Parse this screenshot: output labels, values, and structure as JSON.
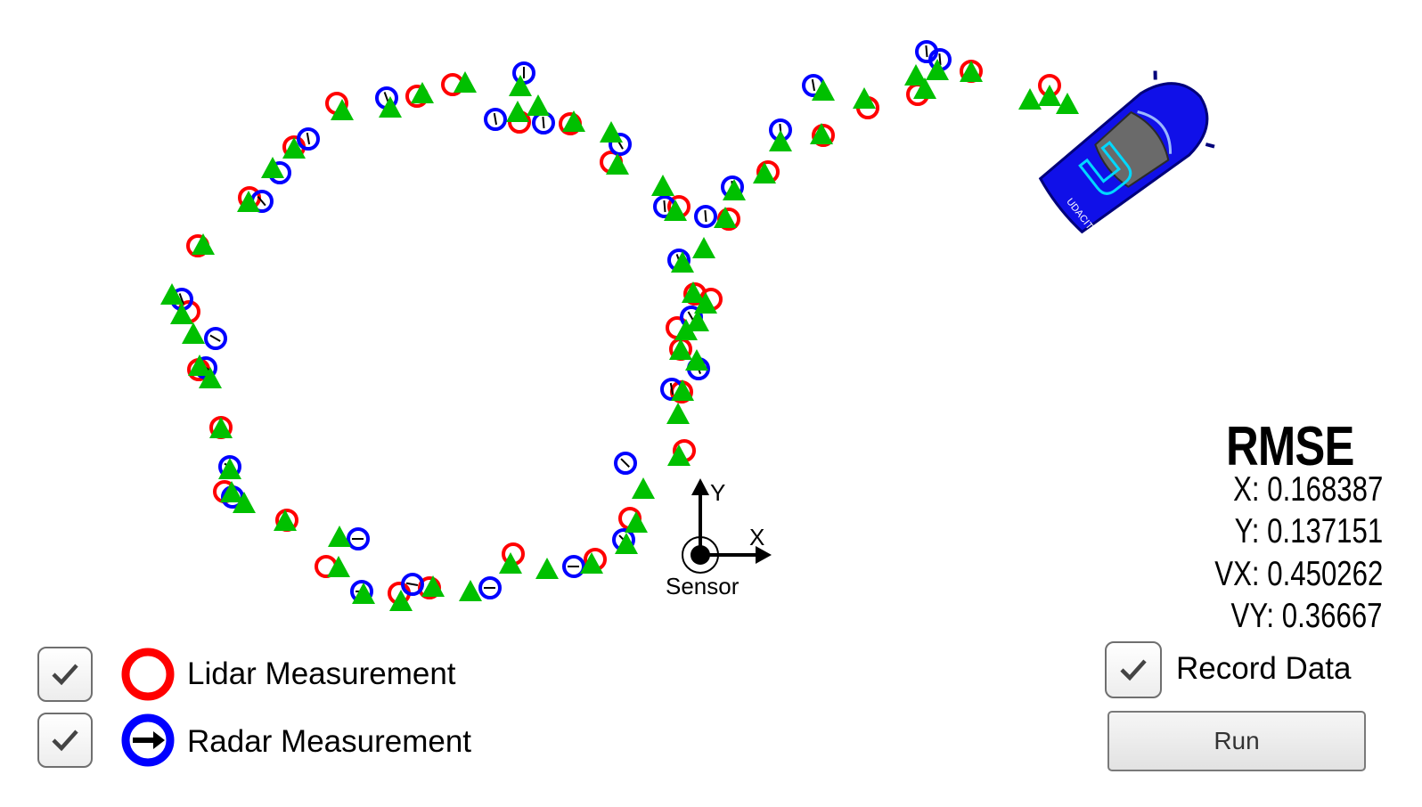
{
  "axes": {
    "y_label": "Y",
    "x_label": "X",
    "origin_label": "Sensor"
  },
  "legend": {
    "lidar": {
      "label": "Lidar Measurement",
      "checked": true,
      "color": "#ff0000"
    },
    "radar": {
      "label": "Radar Measurement",
      "checked": true,
      "color": "#0000ff"
    }
  },
  "rmse": {
    "title": "RMSE",
    "x": "X: 0.168387",
    "y": "Y: 0.137151",
    "vx": "VX: 0.450262",
    "vy": "VY:  0.36667"
  },
  "record": {
    "label": "Record Data",
    "checked": true
  },
  "run": {
    "label": "Run"
  },
  "colors": {
    "lidar": "#ff0000",
    "radar": "#0000ff",
    "estimate": "#00c000",
    "car": "#1010e8"
  },
  "car": {
    "brand": "UDACITY"
  }
}
